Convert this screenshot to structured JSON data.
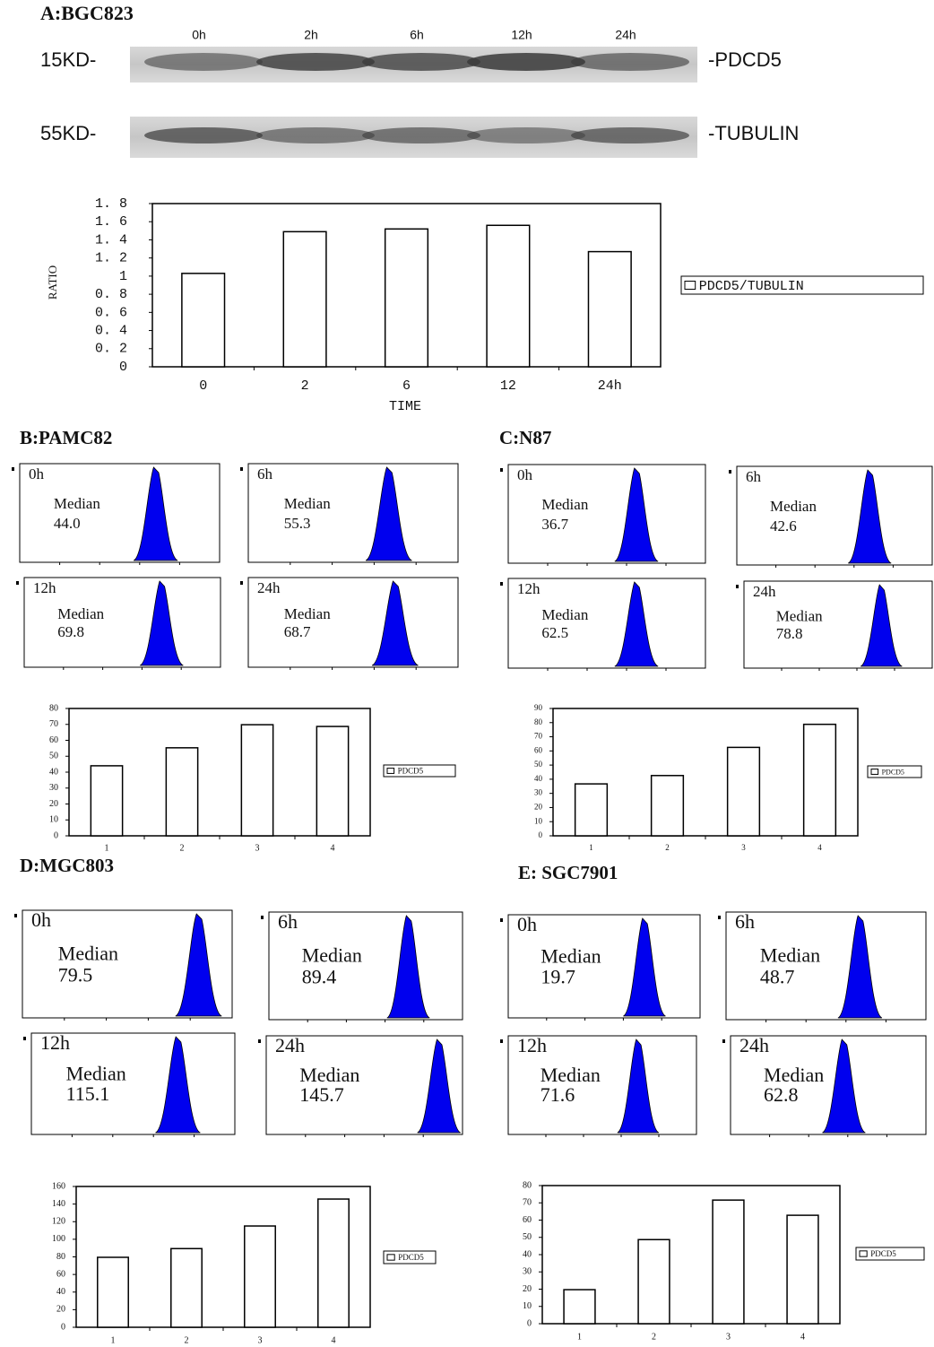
{
  "blot": {
    "title": "A:BGC823",
    "lanes": [
      "0h",
      "2h",
      "6h",
      "12h",
      "24h"
    ],
    "rows": [
      {
        "marker": "15KD-",
        "protein": "-PDCD5"
      },
      {
        "marker": "55KD-",
        "protein": "-TUBULIN"
      }
    ]
  },
  "flow": [
    {
      "title": "B:PAMC82",
      "histograms": [
        {
          "time": "0h",
          "label": "Median",
          "median": "44.0"
        },
        {
          "time": "6h",
          "label": "Median",
          "median": "55.3"
        },
        {
          "time": "12h",
          "label": "Median",
          "median": "69.8"
        },
        {
          "time": "24h",
          "label": "Median",
          "median": "68.7"
        }
      ]
    },
    {
      "title": "C:N87",
      "histograms": [
        {
          "time": "0h",
          "label": "Median",
          "median": "36.7"
        },
        {
          "time": "6h",
          "label": "Median",
          "median": "42.6"
        },
        {
          "time": "12h",
          "label": "Median",
          "median": "62.5"
        },
        {
          "time": "24h",
          "label": "Median",
          "median": "78.8"
        }
      ]
    },
    {
      "title": "D:MGC803",
      "histograms": [
        {
          "time": "0h",
          "label": "Median",
          "median": "79.5"
        },
        {
          "time": "6h",
          "label": "Median",
          "median": "89.4"
        },
        {
          "time": "12h",
          "label": "Median",
          "median": "115.1"
        },
        {
          "time": "24h",
          "label": "Median",
          "median": "145.7"
        }
      ]
    },
    {
      "title": "E: SGC7901",
      "histograms": [
        {
          "time": "0h",
          "label": "Median",
          "median": "19.7"
        },
        {
          "time": "6h",
          "label": "Median",
          "median": "48.7"
        },
        {
          "time": "12h",
          "label": "Median",
          "median": "71.6"
        },
        {
          "time": "24h",
          "label": "Median",
          "median": "62.8"
        }
      ]
    }
  ],
  "chart_data": [
    {
      "type": "bar",
      "y_label": "RATIO",
      "x_label": "TIME",
      "categories": [
        "0",
        "2",
        "6",
        "12",
        "24h"
      ],
      "series": [
        {
          "name": "PDCD5/TUBULIN",
          "color": "#ffffff",
          "values": [
            1.03,
            1.49,
            1.52,
            1.56,
            1.27
          ]
        }
      ],
      "ylim": [
        0,
        1.8
      ],
      "yticks": [
        0,
        {
          "value": 0.2,
          "label": "0. 2"
        },
        {
          "value": 0.4,
          "label": "0. 4"
        },
        {
          "value": 0.6,
          "label": "0. 6"
        },
        {
          "value": 0.8,
          "label": "0. 8"
        },
        1,
        {
          "value": 1.2,
          "label": "1. 2"
        },
        {
          "value": 1.4,
          "label": "1. 4"
        },
        {
          "value": 1.6,
          "label": "1. 6"
        },
        {
          "value": 1.8,
          "label": "1. 8"
        }
      ]
    },
    {
      "type": "bar",
      "categories": [
        "1",
        "2",
        "3",
        "4"
      ],
      "series": [
        {
          "name": "PDCD5",
          "color": "#ffffff",
          "values": [
            44.0,
            55.3,
            69.8,
            68.7
          ]
        }
      ],
      "ylim": [
        0,
        80
      ],
      "yticks": [
        0,
        10,
        20,
        30,
        40,
        50,
        60,
        70,
        80
      ]
    },
    {
      "type": "bar",
      "categories": [
        "1",
        "2",
        "3",
        "4"
      ],
      "series": [
        {
          "name": "PDCD5",
          "color": "#ffffff",
          "values": [
            36.7,
            42.6,
            62.5,
            78.8
          ]
        }
      ],
      "ylim": [
        0,
        90
      ],
      "yticks": [
        0,
        10,
        20,
        30,
        40,
        50,
        60,
        70,
        80,
        90
      ]
    },
    {
      "type": "bar",
      "categories": [
        "1",
        "2",
        "3",
        "4"
      ],
      "series": [
        {
          "name": "PDCD5",
          "color": "#ffffff",
          "values": [
            79.5,
            89.4,
            115.1,
            145.7
          ]
        }
      ],
      "ylim": [
        0,
        160
      ],
      "yticks": [
        0,
        20,
        40,
        60,
        80,
        100,
        120,
        140,
        160
      ]
    },
    {
      "type": "bar",
      "categories": [
        "1",
        "2",
        "3",
        "4"
      ],
      "series": [
        {
          "name": "PDCD5",
          "color": "#ffffff",
          "values": [
            19.7,
            48.7,
            71.6,
            62.8
          ]
        }
      ],
      "ylim": [
        0,
        80
      ],
      "yticks": [
        0,
        10,
        20,
        30,
        40,
        50,
        60,
        70,
        80
      ]
    }
  ]
}
